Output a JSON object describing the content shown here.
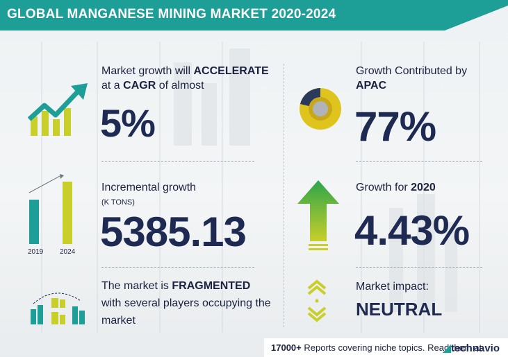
{
  "header": {
    "title": "GLOBAL MANGANESE MINING MARKET 2020-2024"
  },
  "colors": {
    "teal": "#1d9e97",
    "yellow": "#c8cf2a",
    "navy": "#1e2a52",
    "green": "#3aa84a"
  },
  "growth": {
    "prefix": "Market growth will ",
    "emph1": "ACCELERATE",
    "line2_prefix": "at a ",
    "emph2": "CAGR",
    "line2_suffix": " of almost",
    "value": "5%",
    "icon": "growth-chart-icon"
  },
  "apac": {
    "label": "Growth Contributed by",
    "region": "APAC",
    "value": "77%",
    "icon": "donut-chart-icon"
  },
  "incremental": {
    "label": "Incremental growth",
    "unit": "(K TONS)",
    "value": "5385.13",
    "icon": "bar-comparison-icon",
    "year_start": "2019",
    "year_end": "2024"
  },
  "growth2020": {
    "prefix": "Growth for ",
    "year": "2020",
    "value": "4.43%",
    "icon": "up-arrow-icon"
  },
  "fragmented": {
    "prefix": "The market is ",
    "emph": "FRAGMENTED",
    "line2": "with several players occupying the",
    "line3": "market",
    "icon": "market-players-icon"
  },
  "impact": {
    "label": "Market impact:",
    "value": "NEUTRAL",
    "icon": "neutral-arrows-icon"
  },
  "footer": {
    "count": "17000+",
    "text": " Reports covering niche topics. Read them at",
    "brand": "technavio",
    "brand_icon": "technavio-logo-icon"
  }
}
